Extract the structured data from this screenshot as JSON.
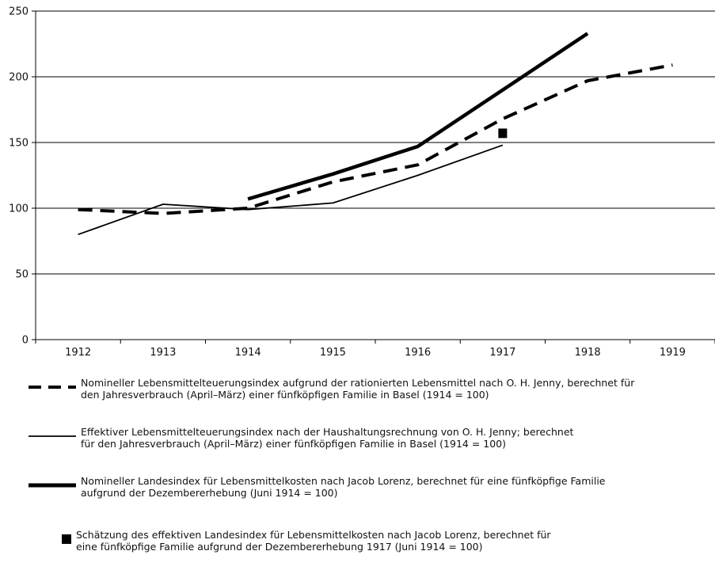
{
  "chart_data": {
    "type": "line",
    "categories": [
      "1912",
      "1913",
      "1914",
      "1915",
      "1916",
      "1917",
      "1918",
      "1919"
    ],
    "ylim": [
      0,
      250
    ],
    "yticks": [
      "0",
      "50",
      "100",
      "150",
      "200",
      "250"
    ],
    "grid": "horizontal",
    "legend_position": "bottom",
    "series": [
      {
        "style": "dashed",
        "values": [
          99,
          96,
          100,
          120,
          133,
          168,
          197,
          209
        ],
        "label": "Nomineller Lebensmittelteuerungsindex aufgrund der rationierten Lebensmittel nach O. H. Jenny, berechnet für\nden Jahresverbrauch (April–März) einer fünfköpfigen Familie in Basel (1914 = 100)"
      },
      {
        "style": "thin",
        "values": [
          80,
          103,
          99,
          104,
          125,
          148,
          null,
          null
        ],
        "label": "Effektiver Lebensmittelteuerungsindex nach der Haushaltungsrechnung von O. H. Jenny; berechnet\nfür den Jahresverbrauch (April–März) einer fünfköpfigen Familie in Basel (1914 = 100)"
      },
      {
        "style": "thick",
        "values": [
          null,
          null,
          107,
          126,
          147,
          190,
          233,
          null
        ],
        "label": "Nomineller Landesindex für Lebensmittelkosten nach Jacob Lorenz, berechnet für eine fünfköpfige Familie\naufgrund der Dezembererhebung (Juni 1914 = 100)"
      },
      {
        "style": "marker",
        "values": [
          null,
          null,
          null,
          null,
          null,
          157,
          null,
          null
        ],
        "label": "Schätzung des effektiven Landesindex für Lebensmittelkosten nach Jacob Lorenz, berechnet für\neine fünfköpfige Familie aufgrund der Dezembererhebung 1917 (Juni 1914 = 100)"
      }
    ]
  }
}
